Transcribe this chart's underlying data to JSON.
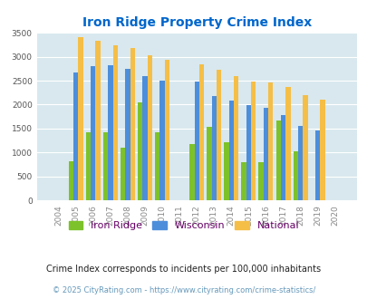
{
  "title": "Iron Ridge Property Crime Index",
  "years": [
    2004,
    2005,
    2006,
    2007,
    2008,
    2009,
    2010,
    2011,
    2012,
    2013,
    2014,
    2015,
    2016,
    2017,
    2018,
    2019,
    2020
  ],
  "iron_ridge": [
    0,
    820,
    1430,
    1430,
    1100,
    2050,
    1430,
    0,
    1170,
    1530,
    1220,
    800,
    790,
    1670,
    1020,
    0,
    0
  ],
  "wisconsin": [
    0,
    2670,
    2800,
    2820,
    2750,
    2600,
    2500,
    0,
    2480,
    2180,
    2090,
    1990,
    1940,
    1790,
    1560,
    1460,
    0
  ],
  "national": [
    0,
    3410,
    3330,
    3240,
    3190,
    3030,
    2940,
    0,
    2850,
    2720,
    2590,
    2490,
    2470,
    2370,
    2200,
    2110,
    0
  ],
  "iron_ridge_color": "#7DC22A",
  "wisconsin_color": "#4D8EDB",
  "national_color": "#F5BE47",
  "background_color": "#D8E8EE",
  "title_color": "#0066CC",
  "ylim": [
    0,
    3500
  ],
  "yticks": [
    0,
    500,
    1000,
    1500,
    2000,
    2500,
    3000,
    3500
  ],
  "legend_labels": [
    "Iron Ridge",
    "Wisconsin",
    "National"
  ],
  "subtitle": "Crime Index corresponds to incidents per 100,000 inhabitants",
  "copyright": "© 2025 CityRating.com - https://www.cityrating.com/crime-statistics/",
  "subtitle_color": "#222222",
  "copyright_color": "#6699BB",
  "legend_label_color": "#660066"
}
